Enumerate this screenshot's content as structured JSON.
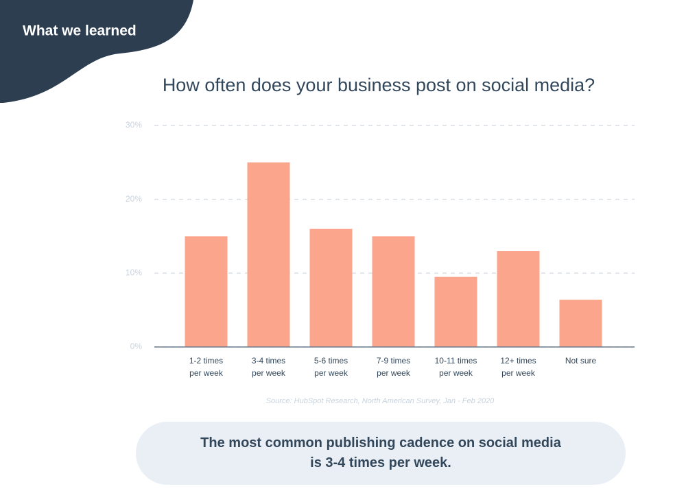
{
  "header": "What we learned",
  "chart_data": {
    "type": "bar",
    "title": "How often does your business post on social media?",
    "categories": [
      "1-2 times\nper week",
      "3-4 times\nper week",
      "5-6 times\nper week",
      "7-9 times\nper week",
      "10-11 times\nper week",
      "12+ times\nper week",
      "Not sure"
    ],
    "values": [
      15,
      25,
      16,
      15,
      9.5,
      13,
      6.4
    ],
    "color": "#fba68c",
    "ylim": [
      0,
      30
    ],
    "yticks": [
      {
        "value": 0,
        "label": "0%"
      },
      {
        "value": 10,
        "label": "10%"
      },
      {
        "value": 20,
        "label": "20%"
      },
      {
        "value": 30,
        "label": "30%"
      }
    ],
    "grid": true,
    "source": "Source: HubSpot Research, North American Survey, Jan - Feb 2020"
  },
  "callout": "The most common publishing cadence on social media\nis 3-4 times per week."
}
